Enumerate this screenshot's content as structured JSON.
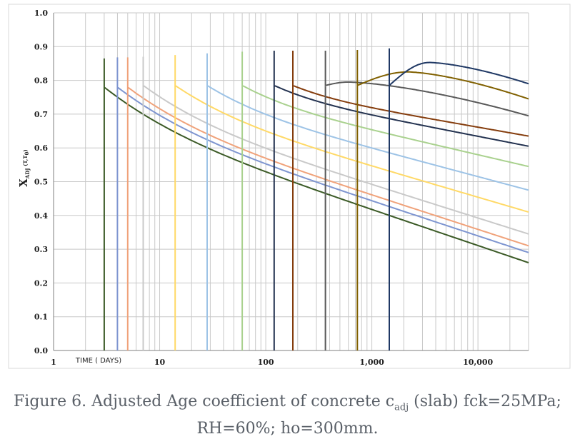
{
  "chart_data": {
    "type": "line",
    "xscale": "log",
    "xlim": [
      1,
      30000
    ],
    "ylim": [
      0,
      1
    ],
    "grid": true,
    "ylabel": {
      "main": "X",
      "sub": "ADJ",
      "rest": " (T,T",
      "rest_sub": "0",
      "close": ")"
    },
    "xlabel": "TIME ( DAYS)",
    "x_tick_labels": [
      {
        "value": 1,
        "label": "1"
      },
      {
        "value": 10,
        "label": "10"
      },
      {
        "value": 100,
        "label": "100"
      },
      {
        "value": 1000,
        "label": "1,000"
      },
      {
        "value": 10000,
        "label": "10,000"
      }
    ],
    "y_tick_labels": [
      "0.0",
      "0.1",
      "0.2",
      "0.3",
      "0.4",
      "0.5",
      "0.6",
      "0.7",
      "0.8",
      "0.9",
      "1.0"
    ],
    "series": [
      {
        "t0": 3,
        "color": "#3b5a26",
        "peak": 0.865,
        "y_start": 0.78,
        "end": 0.26,
        "hump": null
      },
      {
        "t0": 4,
        "color": "#7e95d0",
        "peak": 0.868,
        "y_start": 0.78,
        "end": 0.29,
        "hump": null
      },
      {
        "t0": 5,
        "color": "#f0a27a",
        "peak": 0.868,
        "y_start": 0.78,
        "end": 0.31,
        "hump": null
      },
      {
        "t0": 7,
        "color": "#c9c9c9",
        "peak": 0.87,
        "y_start": 0.785,
        "end": 0.345,
        "hump": null
      },
      {
        "t0": 14,
        "color": "#ffd966",
        "peak": 0.875,
        "y_start": 0.785,
        "end": 0.41,
        "hump": null
      },
      {
        "t0": 28,
        "color": "#9dc3e6",
        "peak": 0.88,
        "y_start": 0.785,
        "end": 0.475,
        "hump": null
      },
      {
        "t0": 60,
        "color": "#a9d18e",
        "peak": 0.885,
        "y_start": 0.785,
        "end": 0.545,
        "hump": null
      },
      {
        "t0": 120,
        "color": "#22314f",
        "peak": 0.888,
        "y_start": 0.785,
        "end": 0.605,
        "hump": null
      },
      {
        "t0": 180,
        "color": "#843c0c",
        "peak": 0.888,
        "y_start": 0.785,
        "end": 0.635,
        "hump": null
      },
      {
        "t0": 365,
        "color": "#595959",
        "peak": 0.888,
        "y_start": 0.785,
        "end": 0.695,
        "hump": {
          "x": 600,
          "y": 0.795
        }
      },
      {
        "t0": 730,
        "color": "#806000",
        "peak": 0.89,
        "y_start": 0.785,
        "end": 0.745,
        "hump": {
          "x": 2200,
          "y": 0.825
        }
      },
      {
        "t0": 1460,
        "color": "#1f3864",
        "peak": 0.895,
        "y_start": 0.785,
        "end": 0.79,
        "hump": {
          "x": 3500,
          "y": 0.853
        }
      }
    ]
  },
  "caption": {
    "part1": "Figure 6. Adjusted Age coefficient of concrete c",
    "sub": "adj",
    "part2": " (slab) fck=25MPa;",
    "line2": "RH=60%; ho=300mm."
  }
}
